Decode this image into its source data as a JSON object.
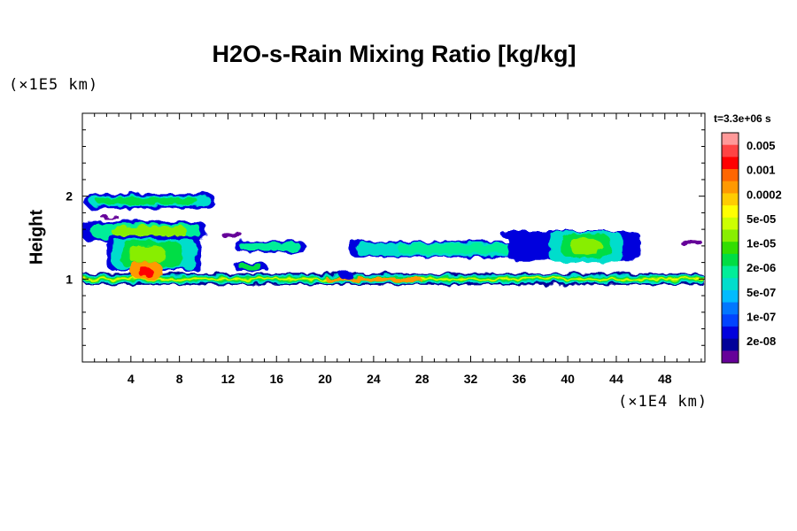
{
  "chart_data": {
    "type": "heatmap",
    "title": "H2O-s-Rain Mixing Ratio [kg/kg]",
    "ylabel": "Height",
    "x_unit_label": "(×1E4 km)",
    "y_unit_label": "(×1E5 km)",
    "time_label": "t=3.3e+06 s",
    "xlim": [
      0,
      51.3
    ],
    "ylim": [
      0,
      3
    ],
    "x_ticks": [
      4,
      8,
      12,
      16,
      20,
      24,
      28,
      32,
      36,
      40,
      44,
      48
    ],
    "x_tick_labels": [
      "4",
      "8",
      "12",
      "16",
      "20",
      "24",
      "28",
      "32",
      "36",
      "40",
      "44",
      "48"
    ],
    "y_ticks": [
      1,
      2
    ],
    "y_tick_labels": [
      "1",
      "2"
    ],
    "colorbar": {
      "levels": [
        "0.005",
        "0.001",
        "0.0002",
        "5e-05",
        "1e-05",
        "2e-06",
        "5e-07",
        "1e-07",
        "2e-08"
      ],
      "colors": [
        "#ff9999",
        "#ff4444",
        "#ff0000",
        "#ff6600",
        "#ff9900",
        "#ffcc00",
        "#ffff00",
        "#ccff00",
        "#88ee00",
        "#33dd00",
        "#00dd44",
        "#00ee99",
        "#00ddcc",
        "#00bbff",
        "#0077ff",
        "#0044ff",
        "#0000dd",
        "#000099",
        "#660099"
      ]
    },
    "regions": [
      {
        "name": "surface-layer",
        "x": [
          0,
          51.3
        ],
        "y": [
          0.93,
          1.06
        ],
        "level": "5e-07"
      },
      {
        "name": "upper-cloud-left",
        "x": [
          0,
          11
        ],
        "y": [
          1.1,
          2.05
        ],
        "level": "1e-05"
      },
      {
        "name": "core-left",
        "x": [
          4,
          6.5
        ],
        "y": [
          1.0,
          1.2
        ],
        "level": "0.0002"
      },
      {
        "name": "mid-cloud-12-18",
        "x": [
          12.5,
          18.5
        ],
        "y": [
          1.32,
          1.46
        ],
        "level": "5e-07"
      },
      {
        "name": "mid-cloud-22-46",
        "x": [
          22,
          46
        ],
        "y": [
          1.25,
          1.5
        ],
        "level": "2e-06"
      },
      {
        "name": "cloud-40-44",
        "x": [
          39,
          44
        ],
        "y": [
          1.2,
          1.58
        ],
        "level": "1e-05"
      }
    ]
  }
}
